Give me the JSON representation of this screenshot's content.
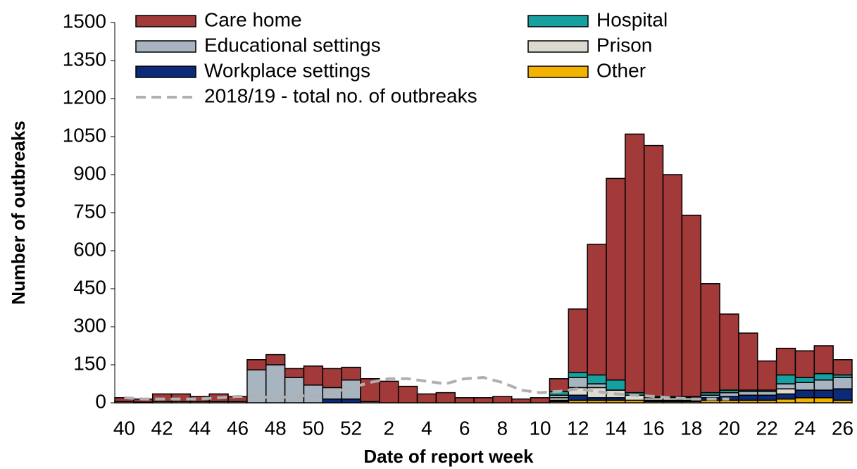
{
  "chart_data": {
    "type": "stacked-bar",
    "y_label": "Number of outbreaks",
    "x_label": "Date of report week",
    "categories": [
      40,
      null,
      42,
      null,
      44,
      null,
      46,
      null,
      48,
      null,
      50,
      null,
      52,
      null,
      2,
      null,
      4,
      null,
      6,
      null,
      8,
      null,
      10,
      null,
      12,
      null,
      14,
      null,
      16,
      null,
      18,
      null,
      20,
      null,
      22,
      null,
      24,
      null,
      26
    ],
    "series": [
      {
        "name": "Care home",
        "color": "#a33a3a",
        "values": [
          15,
          12,
          30,
          30,
          20,
          30,
          20,
          40,
          40,
          35,
          75,
          75,
          50,
          90,
          85,
          65,
          35,
          40,
          20,
          20,
          25,
          15,
          20,
          50,
          250,
          515,
          795,
          1020,
          990,
          875,
          715,
          430,
          300,
          225,
          115,
          105,
          105,
          110,
          60
        ]
      },
      {
        "name": "Hospital",
        "color": "#17a0a0",
        "values": [
          0,
          0,
          0,
          0,
          0,
          0,
          0,
          0,
          0,
          0,
          0,
          0,
          0,
          0,
          0,
          0,
          0,
          0,
          0,
          0,
          0,
          0,
          0,
          15,
          20,
          35,
          40,
          10,
          5,
          5,
          5,
          10,
          10,
          5,
          5,
          35,
          20,
          25,
          10
        ]
      },
      {
        "name": "Educational settings",
        "color": "#a8b4c0",
        "values": [
          5,
          3,
          5,
          5,
          5,
          5,
          5,
          130,
          150,
          100,
          70,
          45,
          75,
          5,
          0,
          0,
          0,
          0,
          0,
          0,
          0,
          0,
          0,
          10,
          40,
          15,
          0,
          0,
          0,
          0,
          0,
          10,
          15,
          15,
          15,
          20,
          30,
          40,
          45
        ]
      },
      {
        "name": "Prison",
        "color": "#dcdad0",
        "values": [
          0,
          0,
          0,
          0,
          0,
          0,
          0,
          0,
          0,
          0,
          0,
          0,
          0,
          0,
          0,
          0,
          0,
          0,
          0,
          0,
          0,
          0,
          0,
          10,
          30,
          40,
          30,
          20,
          10,
          10,
          10,
          0,
          0,
          0,
          0,
          20,
          0,
          0,
          0
        ]
      },
      {
        "name": "Workplace settings",
        "color": "#0d2a78",
        "values": [
          0,
          0,
          0,
          0,
          0,
          0,
          0,
          0,
          0,
          0,
          0,
          15,
          15,
          0,
          0,
          0,
          0,
          0,
          0,
          0,
          0,
          0,
          0,
          5,
          20,
          10,
          10,
          0,
          5,
          5,
          5,
          10,
          15,
          20,
          20,
          20,
          30,
          30,
          45
        ]
      },
      {
        "name": "Other",
        "color": "#f2b200",
        "values": [
          0,
          0,
          0,
          0,
          0,
          0,
          0,
          0,
          0,
          0,
          0,
          0,
          0,
          0,
          0,
          0,
          0,
          0,
          0,
          0,
          0,
          0,
          0,
          5,
          10,
          10,
          10,
          10,
          5,
          5,
          5,
          10,
          10,
          10,
          10,
          15,
          20,
          20,
          10
        ]
      }
    ],
    "line": {
      "name": "2018/19 - total no. of outbreaks",
      "color": "#b0b0b0",
      "values": [
        20,
        15,
        15,
        15,
        15,
        20,
        25,
        25,
        20,
        25,
        30,
        40,
        60,
        80,
        95,
        95,
        85,
        75,
        95,
        100,
        80,
        50,
        40,
        45,
        55,
        45,
        35,
        30,
        25,
        20,
        15,
        15,
        15,
        null,
        null,
        null,
        null,
        null,
        null
      ]
    },
    "ylim": [
      0,
      1500
    ],
    "yticks": [
      0,
      150,
      300,
      450,
      600,
      750,
      900,
      1050,
      1200,
      1350,
      1500
    ]
  }
}
